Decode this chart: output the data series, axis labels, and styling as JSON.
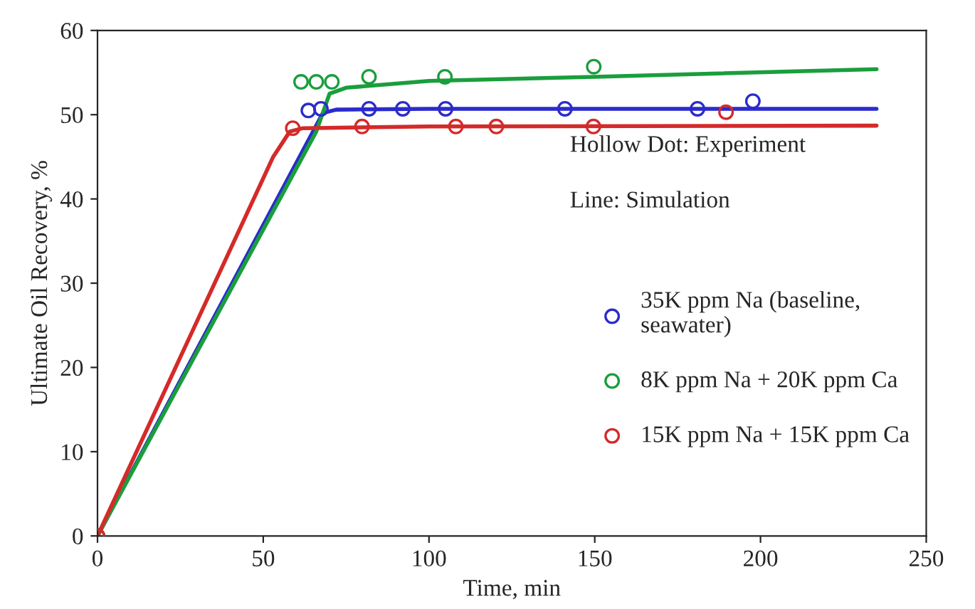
{
  "chart_data": {
    "type": "line",
    "xlabel": "Time, min",
    "ylabel": "Ultimate Oil Recovery, %",
    "xlim": [
      0,
      250
    ],
    "xticks": [
      0,
      50,
      100,
      150,
      200,
      250
    ],
    "ylim": [
      0,
      60
    ],
    "yticks": [
      0,
      10,
      20,
      30,
      40,
      50,
      60
    ],
    "grid": false,
    "legend": "right",
    "annotations": [
      "Hollow Dot: Experiment",
      "Line: Simulation"
    ],
    "series": [
      {
        "type": "scatter",
        "marker": "circle",
        "name": "35K ppm Na (baseline,\nseawater)",
        "color": "#2b2bcc",
        "x": [
          0,
          63.6,
          67.4,
          81.9,
          92.1,
          105,
          141,
          181,
          197.7
        ],
        "values": [
          0,
          50.5,
          50.7,
          50.7,
          50.7,
          50.7,
          50.7,
          50.7,
          51.6
        ]
      },
      {
        "type": "scatter",
        "marker": "circle",
        "name": "8K ppm Na + 20K ppm Ca",
        "color": "#1a9e3c",
        "x": [
          0,
          61.4,
          66.0,
          70.7,
          81.9,
          104.8,
          149.7
        ],
        "values": [
          0,
          53.9,
          53.9,
          53.9,
          54.5,
          54.5,
          55.7
        ]
      },
      {
        "type": "scatter",
        "marker": "circle",
        "name": "15K ppm Na + 15K ppm Ca",
        "color": "#d42a2a",
        "x": [
          0,
          58.9,
          79.8,
          108.1,
          120.3,
          149.6,
          189.6
        ],
        "values": [
          0,
          48.4,
          48.6,
          48.6,
          48.6,
          48.6,
          50.3
        ]
      },
      {
        "color": "#2b2bcc",
        "x": [
          0,
          68,
          72,
          100,
          235
        ],
        "values": [
          0,
          50.2,
          50.6,
          50.7,
          50.7
        ]
      },
      {
        "color": "#1a9e3c",
        "x": [
          0,
          66,
          70,
          75,
          100,
          150,
          235
        ],
        "values": [
          0,
          48,
          52.5,
          53.2,
          54,
          54.5,
          55.4
        ]
      },
      {
        "color": "#d42a2a",
        "x": [
          0,
          53,
          58,
          62,
          100,
          235
        ],
        "values": [
          0,
          45,
          48,
          48.4,
          48.6,
          48.7
        ]
      }
    ]
  }
}
